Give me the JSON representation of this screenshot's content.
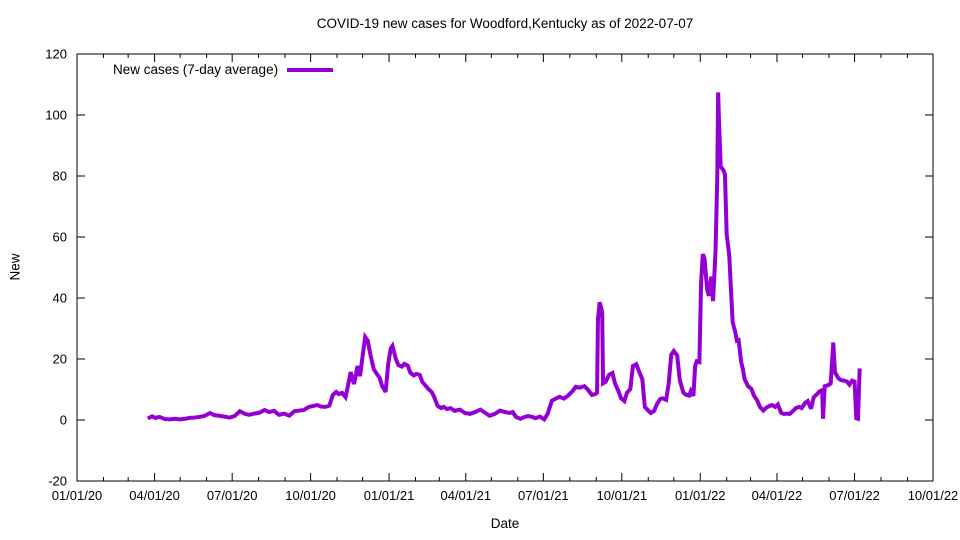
{
  "chart": {
    "background": "#ffffff",
    "frame_color": "#000000",
    "text_color": "#000000"
  },
  "chart_data": {
    "type": "line",
    "title": "COVID-19 new cases for Woodford,Kentucky as of 2022-07-07",
    "xlabel": "Date",
    "ylabel": "New",
    "grid": false,
    "legend_position": "top-left-inside",
    "xlim": [
      "2020-01-01",
      "2022-10-01"
    ],
    "ylim": [
      -20,
      120
    ],
    "y_ticks": [
      -20,
      0,
      20,
      40,
      60,
      80,
      100,
      120
    ],
    "x_ticks": [
      {
        "date": "2020-01-01",
        "label": "01/01/20"
      },
      {
        "date": "2020-04-01",
        "label": "04/01/20"
      },
      {
        "date": "2020-07-01",
        "label": "07/01/20"
      },
      {
        "date": "2020-10-01",
        "label": "10/01/20"
      },
      {
        "date": "2021-01-01",
        "label": "01/01/21"
      },
      {
        "date": "2021-04-01",
        "label": "04/01/21"
      },
      {
        "date": "2021-07-01",
        "label": "07/01/21"
      },
      {
        "date": "2021-10-01",
        "label": "10/01/21"
      },
      {
        "date": "2022-01-01",
        "label": "01/01/22"
      },
      {
        "date": "2022-04-01",
        "label": "04/01/22"
      },
      {
        "date": "2022-07-01",
        "label": "07/01/22"
      },
      {
        "date": "2022-10-01",
        "label": "10/01/22"
      }
    ],
    "minor_x_tick_interval_months": 1,
    "series": [
      {
        "name": "New cases (7-day average)",
        "color": "#9400d3",
        "line_width": 4,
        "x": [
          "2020-03-24",
          "2020-03-29",
          "2020-04-02",
          "2020-04-07",
          "2020-04-13",
          "2020-04-19",
          "2020-04-25",
          "2020-05-01",
          "2020-05-07",
          "2020-05-12",
          "2020-05-18",
          "2020-05-24",
          "2020-05-30",
          "2020-06-05",
          "2020-06-10",
          "2020-06-16",
          "2020-06-22",
          "2020-06-28",
          "2020-07-04",
          "2020-07-10",
          "2020-07-16",
          "2020-07-21",
          "2020-07-27",
          "2020-08-02",
          "2020-08-08",
          "2020-08-13",
          "2020-08-19",
          "2020-08-25",
          "2020-08-31",
          "2020-09-06",
          "2020-09-12",
          "2020-09-18",
          "2020-09-23",
          "2020-09-29",
          "2020-10-04",
          "2020-10-09",
          "2020-10-13",
          "2020-10-18",
          "2020-10-23",
          "2020-10-27",
          "2020-10-31",
          "2020-11-03",
          "2020-11-07",
          "2020-11-11",
          "2020-11-14",
          "2020-11-17",
          "2020-11-19",
          "2020-11-21",
          "2020-11-25",
          "2020-11-28",
          "2020-12-01",
          "2020-12-04",
          "2020-12-07",
          "2020-12-10",
          "2020-12-14",
          "2020-12-17",
          "2020-12-21",
          "2020-12-24",
          "2020-12-28",
          "2020-12-31",
          "2021-01-03",
          "2021-01-05",
          "2021-01-09",
          "2021-01-12",
          "2021-01-16",
          "2021-01-19",
          "2021-01-23",
          "2021-01-26",
          "2021-01-30",
          "2021-02-02",
          "2021-02-06",
          "2021-02-09",
          "2021-02-13",
          "2021-02-16",
          "2021-02-20",
          "2021-02-23",
          "2021-02-27",
          "2021-03-03",
          "2021-03-06",
          "2021-03-10",
          "2021-03-14",
          "2021-03-19",
          "2021-03-25",
          "2021-03-31",
          "2021-04-06",
          "2021-04-12",
          "2021-04-18",
          "2021-04-24",
          "2021-04-29",
          "2021-05-05",
          "2021-05-11",
          "2021-05-17",
          "2021-05-23",
          "2021-05-26",
          "2021-05-30",
          "2021-06-04",
          "2021-06-08",
          "2021-06-13",
          "2021-06-18",
          "2021-06-22",
          "2021-06-27",
          "2021-07-02",
          "2021-07-06",
          "2021-07-11",
          "2021-07-16",
          "2021-07-20",
          "2021-07-25",
          "2021-07-30",
          "2021-08-04",
          "2021-08-08",
          "2021-08-13",
          "2021-08-18",
          "2021-08-22",
          "2021-08-27",
          "2021-08-31",
          "2021-09-02",
          "2021-09-03",
          "2021-09-05",
          "2021-09-08",
          "2021-09-09",
          "2021-09-12",
          "2021-09-16",
          "2021-09-20",
          "2021-09-23",
          "2021-09-27",
          "2021-09-30",
          "2021-10-04",
          "2021-10-07",
          "2021-10-11",
          "2021-10-14",
          "2021-10-18",
          "2021-10-21",
          "2021-10-25",
          "2021-10-28",
          "2021-11-01",
          "2021-11-04",
          "2021-11-08",
          "2021-11-11",
          "2021-11-15",
          "2021-11-18",
          "2021-11-22",
          "2021-11-25",
          "2021-11-28",
          "2021-12-01",
          "2021-12-05",
          "2021-12-08",
          "2021-12-12",
          "2021-12-15",
          "2021-12-19",
          "2021-12-21",
          "2021-12-24",
          "2021-12-26",
          "2021-12-28",
          "2021-12-31",
          "2022-01-02",
          "2022-01-04",
          "2022-01-06",
          "2022-01-09",
          "2022-01-11",
          "2022-01-14",
          "2022-01-16",
          "2022-01-18",
          "2022-01-19",
          "2022-01-21",
          "2022-01-22",
          "2022-01-23",
          "2022-01-25",
          "2022-01-28",
          "2022-01-30",
          "2022-02-01",
          "2022-02-04",
          "2022-02-06",
          "2022-02-08",
          "2022-02-11",
          "2022-02-13",
          "2022-02-15",
          "2022-02-18",
          "2022-02-20",
          "2022-02-22",
          "2022-02-26",
          "2022-03-02",
          "2022-03-05",
          "2022-03-09",
          "2022-03-12",
          "2022-03-16",
          "2022-03-19",
          "2022-03-23",
          "2022-03-26",
          "2022-03-30",
          "2022-04-02",
          "2022-04-06",
          "2022-04-09",
          "2022-04-13",
          "2022-04-16",
          "2022-04-20",
          "2022-04-23",
          "2022-04-27",
          "2022-04-30",
          "2022-05-04",
          "2022-05-07",
          "2022-05-11",
          "2022-05-14",
          "2022-05-18",
          "2022-05-21",
          "2022-05-24",
          "2022-05-25",
          "2022-05-27",
          "2022-05-31",
          "2022-06-03",
          "2022-06-06",
          "2022-06-08",
          "2022-06-12",
          "2022-06-15",
          "2022-06-19",
          "2022-06-22",
          "2022-06-25",
          "2022-06-28",
          "2022-07-01",
          "2022-07-03",
          "2022-07-05",
          "2022-07-07"
        ],
        "values": [
          0.5,
          1.2,
          0.7,
          1.0,
          0.3,
          0.2,
          0.4,
          0.2,
          0.4,
          0.7,
          0.8,
          1.0,
          1.4,
          2.3,
          1.6,
          1.4,
          1.1,
          0.8,
          1.3,
          2.9,
          2.0,
          1.7,
          2.1,
          2.4,
          3.3,
          2.6,
          3.0,
          1.7,
          2.1,
          1.4,
          2.9,
          3.1,
          3.3,
          4.3,
          4.6,
          4.9,
          4.4,
          4.3,
          4.7,
          8.2,
          9.2,
          8.5,
          8.9,
          7.5,
          11.5,
          15.7,
          13.4,
          11.8,
          17.7,
          14.4,
          21.0,
          27.2,
          26.0,
          21.6,
          16.7,
          15.4,
          13.8,
          11.0,
          9.2,
          18.4,
          23.5,
          24.3,
          20.0,
          18.0,
          17.5,
          18.4,
          17.8,
          15.5,
          14.6,
          15.1,
          14.8,
          12.5,
          11.2,
          10.2,
          9.2,
          7.5,
          4.6,
          3.9,
          4.3,
          3.6,
          3.9,
          3.0,
          3.4,
          2.3,
          2.0,
          2.6,
          3.4,
          2.3,
          1.4,
          2.0,
          3.1,
          2.6,
          2.3,
          2.6,
          1.0,
          0.4,
          0.9,
          1.3,
          1.0,
          0.6,
          1.1,
          0.2,
          2.0,
          6.3,
          7.1,
          7.6,
          7.0,
          8.0,
          9.4,
          10.9,
          10.6,
          11.1,
          10.0,
          8.2,
          8.5,
          9.0,
          32.8,
          38.6,
          35.4,
          12.0,
          12.5,
          14.8,
          15.4,
          12.0,
          9.5,
          7.2,
          6.2,
          8.9,
          10.2,
          17.7,
          18.3,
          16.1,
          13.4,
          4.3,
          3.1,
          2.3,
          3.0,
          5.1,
          6.9,
          7.1,
          6.6,
          12.0,
          21.4,
          22.6,
          21.1,
          13.1,
          9.1,
          8.3,
          8.0,
          9.5,
          7.9,
          17.7,
          19.3,
          19.0,
          45.0,
          54.4,
          53.0,
          43.0,
          40.7,
          47.0,
          39.0,
          50.0,
          56.0,
          80.0,
          107.4,
          98.0,
          83.0,
          82.0,
          80.5,
          61.0,
          54.0,
          43.0,
          32.1,
          28.9,
          26.0,
          26.2,
          19.0,
          16.7,
          13.4,
          11.1,
          10.2,
          8.0,
          6.3,
          4.3,
          3.1,
          3.9,
          4.6,
          4.9,
          4.3,
          5.1,
          2.3,
          2.0,
          2.1,
          2.0,
          3.0,
          3.9,
          4.3,
          3.9,
          5.6,
          6.2,
          3.7,
          7.4,
          8.5,
          9.4,
          9.8,
          0.4,
          11.1,
          11.4,
          12.0,
          25.4,
          15.7,
          13.7,
          13.1,
          12.9,
          12.6,
          11.6,
          12.9,
          12.6,
          0.6,
          0.4,
          16.9
        ]
      }
    ]
  }
}
